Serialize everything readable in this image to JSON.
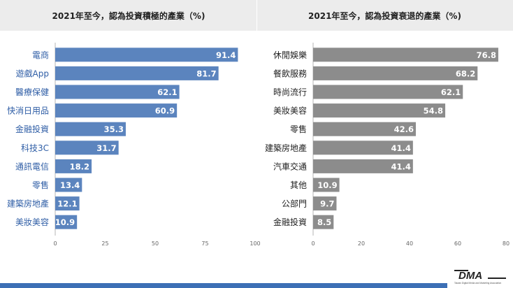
{
  "colors": {
    "left_bar": "#5b84be",
    "right_bar": "#8c8c8c",
    "left_label": "#2f5ea6",
    "right_label": "#222222",
    "header_bg": "#ececec",
    "footer": "#3c6fb5"
  },
  "logo": {
    "text": "DMA",
    "tagline": "Taiwan Digital Media and Marketing Association"
  },
  "chart_data": [
    {
      "type": "bar",
      "orientation": "horizontal",
      "title": "2021年至今，認為投資積極的產業（%)",
      "categories": [
        "電商",
        "遊戲App",
        "醫療保健",
        "快消日用品",
        "金融投資",
        "科技3C",
        "通訊電信",
        "零售",
        "建築房地產",
        "美妝美容"
      ],
      "values": [
        91.4,
        81.7,
        62.1,
        60.9,
        35.3,
        31.7,
        18.2,
        13.4,
        12.1,
        10.9
      ],
      "value_labels": [
        "91.4",
        "81.7",
        "62.1",
        "60.9",
        "35.3",
        "31.7",
        "18.2",
        "13.4",
        "12.1",
        "10.9"
      ],
      "xlim": [
        0,
        100
      ],
      "ticks": [
        0,
        25,
        50,
        75,
        100
      ],
      "tick_labels": [
        "0",
        "25",
        "50",
        "75",
        "100"
      ],
      "grid": false
    },
    {
      "type": "bar",
      "orientation": "horizontal",
      "title": "2021年至今，認為投資衰退的產業（%)",
      "categories": [
        "休閒娛樂",
        "餐飲服務",
        "時尚流行",
        "美妝美容",
        "零售",
        "建築房地產",
        "汽車交通",
        "其他",
        "公部門",
        "金融投資"
      ],
      "values": [
        76.8,
        68.2,
        62.1,
        54.8,
        42.6,
        41.4,
        41.4,
        10.9,
        9.7,
        8.5
      ],
      "value_labels": [
        "76.8",
        "68.2",
        "62.1",
        "54.8",
        "42.6",
        "41.4",
        "41.4",
        "10.9",
        "9.7",
        "8.5"
      ],
      "xlim": [
        0,
        80
      ],
      "ticks": [
        0,
        20,
        40,
        60,
        80
      ],
      "tick_labels": [
        "0",
        "20",
        "40",
        "60",
        "80"
      ],
      "grid": false
    }
  ]
}
